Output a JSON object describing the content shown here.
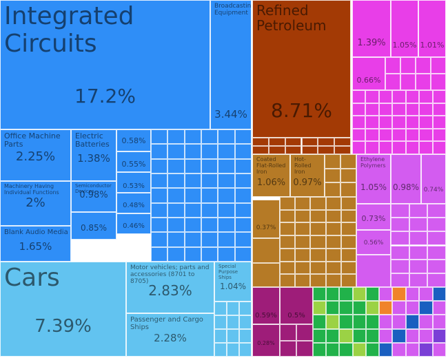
{
  "chart_data": {
    "type": "treemap",
    "colors": {
      "electronics": "#2f8ef7",
      "vehicles": "#62c3f0",
      "petroleum": "#a33a05",
      "chemicals": "#e83ee8",
      "metals": "#b57a26",
      "other": "#9e1d79",
      "textiles": "#21b24a",
      "plastics": "#d35cf0"
    },
    "tiles": [
      {
        "label": "Integrated Circuits",
        "value": "17.2%",
        "group": "electronics"
      },
      {
        "label": "Broadcasting Equipment",
        "value": "3.44%",
        "group": "electronics"
      },
      {
        "label": "Office Machine Parts",
        "value": "2.25%",
        "group": "electronics"
      },
      {
        "label": "Electric Batteries",
        "value": "1.38%",
        "group": "electronics"
      },
      {
        "label": "",
        "value": "0.58%",
        "group": "electronics"
      },
      {
        "label": "",
        "value": "0.55%",
        "group": "electronics"
      },
      {
        "label": "",
        "value": "0.53%",
        "group": "electronics"
      },
      {
        "label": "",
        "value": "0.48%",
        "group": "electronics"
      },
      {
        "label": "",
        "value": "0.46%",
        "group": "electronics"
      },
      {
        "label": "Machinery Having Individual Functions",
        "value": "2%",
        "group": "electronics"
      },
      {
        "label": "Semiconductor Devices",
        "value": "0.98%",
        "group": "electronics"
      },
      {
        "label": "",
        "value": "0.85%",
        "group": "electronics"
      },
      {
        "label": "Blank Audio Media",
        "value": "1.65%",
        "group": "electronics"
      },
      {
        "label": "Cars",
        "value": "7.39%",
        "group": "vehicles"
      },
      {
        "label": "Motor vehicles; parts and accessories (8701 to 8705)",
        "value": "2.83%",
        "group": "vehicles"
      },
      {
        "label": "Passenger and Cargo Ships",
        "value": "2.28%",
        "group": "vehicles"
      },
      {
        "label": "Special Purpose Ships",
        "value": "1.04%",
        "group": "vehicles"
      },
      {
        "label": "Refined Petroleum",
        "value": "8.71%",
        "group": "petroleum"
      },
      {
        "label": "",
        "value": "1.39%",
        "group": "chemicals"
      },
      {
        "label": "",
        "value": "1.05%",
        "group": "chemicals"
      },
      {
        "label": "",
        "value": "1.01%",
        "group": "chemicals"
      },
      {
        "label": "",
        "value": "0.66%",
        "group": "chemicals"
      },
      {
        "label": "Coated Flat-Rolled Iron",
        "value": "1.06%",
        "group": "metals"
      },
      {
        "label": "Hot-Rolled Iron",
        "value": "0.97%",
        "group": "metals"
      },
      {
        "label": "",
        "value": "0.37%",
        "group": "metals"
      },
      {
        "label": "Ethylene Polymers",
        "value": "1.05%",
        "group": "plastics"
      },
      {
        "label": "",
        "value": "0.98%",
        "group": "plastics"
      },
      {
        "label": "",
        "value": "0.74%",
        "group": "plastics"
      },
      {
        "label": "",
        "value": "0.73%",
        "group": "plastics"
      },
      {
        "label": "",
        "value": "0.56%",
        "group": "plastics"
      },
      {
        "label": "",
        "value": "0.59%",
        "group": "other"
      },
      {
        "label": "",
        "value": "0.5%",
        "group": "other"
      },
      {
        "label": "",
        "value": "0.28%",
        "group": "other"
      }
    ]
  }
}
